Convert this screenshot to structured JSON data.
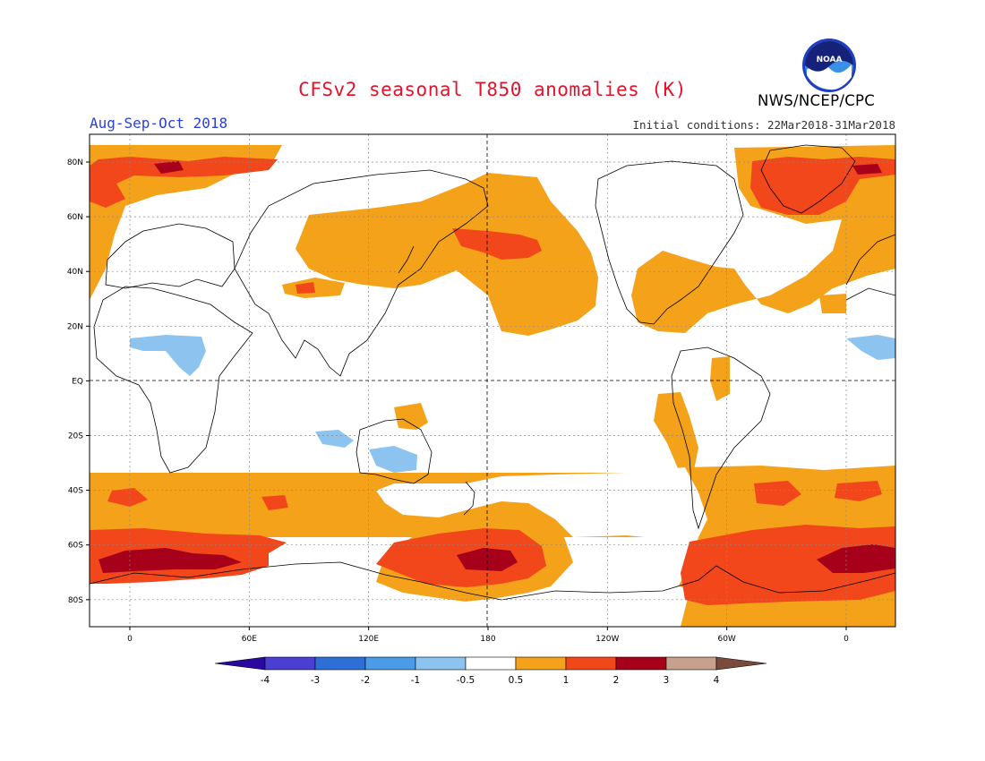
{
  "header": {
    "title": "CFSv2 seasonal T850 anomalies (K)",
    "period": "Aug-Sep-Oct 2018",
    "initial_conditions": "Initial conditions: 22Mar2018-31Mar2018",
    "agency": "NWS/NCEP/CPC",
    "logo_text": "NOAA",
    "logo_icon": "noaa-logo-icon"
  },
  "axes": {
    "lat_ticks": [
      "80N",
      "60N",
      "40N",
      "20N",
      "EQ",
      "20S",
      "40S",
      "60S",
      "80S"
    ],
    "lon_ticks": [
      "0",
      "60E",
      "120E",
      "180",
      "120W",
      "60W",
      "0"
    ]
  },
  "colorbar": {
    "boundaries": [
      "-4",
      "-3",
      "-2",
      "-1",
      "-0.5",
      "0.5",
      "1",
      "2",
      "3",
      "4"
    ],
    "colors": [
      "#2a0a9e",
      "#4b3fd1",
      "#2d6fd6",
      "#4b9be6",
      "#8cc4ef",
      "#ffffff",
      "#f5a21b",
      "#f2461b",
      "#a6001a",
      "#c8a08e",
      "#7a4b3c"
    ]
  },
  "colors": {
    "title": "#e4132b",
    "period": "#2b3fd6",
    "land_outline": "#000000",
    "grid": "#777777"
  }
}
